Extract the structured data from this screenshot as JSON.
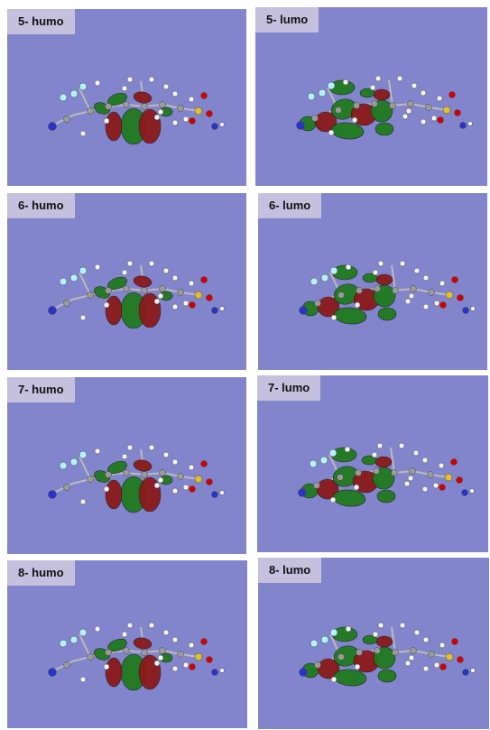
{
  "colors": {
    "background": "#8385cc",
    "label_bg": "#c5c0de",
    "lobe_positive": "#8b1a1a",
    "lobe_negative": "#1f7a1f",
    "atom_carbon": "#9a9a9a",
    "atom_hydrogen": "#f2f2f2",
    "atom_nitrogen": "#2a33c8",
    "atom_oxygen": "#d40000",
    "atom_sulfur": "#e2c12a",
    "atom_fluorine": "#b4f0ff"
  },
  "panels": [
    {
      "label": "5- humo",
      "orbital": "homo"
    },
    {
      "label": "5- lumo",
      "orbital": "lumo"
    },
    {
      "label": "6- humo",
      "orbital": "homo"
    },
    {
      "label": "6- lumo",
      "orbital": "lumo"
    },
    {
      "label": "7- humo",
      "orbital": "homo"
    },
    {
      "label": "7- lumo",
      "orbital": "lumo"
    },
    {
      "label": "8- humo",
      "orbital": "homo"
    },
    {
      "label": "8- lumo",
      "orbital": "lumo"
    }
  ]
}
